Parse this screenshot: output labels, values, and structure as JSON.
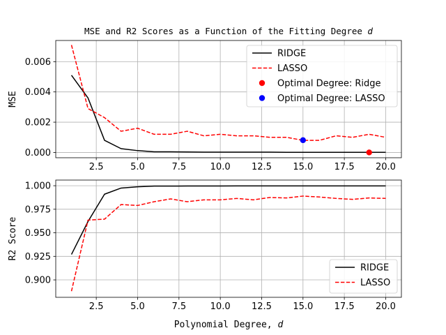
{
  "chart_data": [
    {
      "type": "line",
      "title": "MSE and R2 Scores as a Function of the Fitting Degree",
      "title_var": "d",
      "xlabel": "",
      "ylabel": "MSE",
      "xlim": [
        0.05,
        20.95
      ],
      "ylim": [
        -0.00035,
        0.0074
      ],
      "xticks": [
        2.5,
        5.0,
        7.5,
        10.0,
        12.5,
        15.0,
        17.5,
        20.0
      ],
      "xtick_labels": [
        "2.5",
        "5.0",
        "7.5",
        "10.0",
        "12.5",
        "15.0",
        "17.5",
        "20.0"
      ],
      "yticks": [
        0.0,
        0.002,
        0.004,
        0.006
      ],
      "ytick_labels": [
        "0.000",
        "0.002",
        "0.004",
        "0.006"
      ],
      "grid": true,
      "legend_position": "top-right",
      "x": [
        1,
        2,
        3,
        4,
        5,
        6,
        7,
        8,
        9,
        10,
        11,
        12,
        13,
        14,
        15,
        16,
        17,
        18,
        19,
        20
      ],
      "series": [
        {
          "name": "RIDGE",
          "color": "#000000",
          "style": "solid",
          "values": [
            0.0051,
            0.0036,
            0.0008,
            0.00025,
            0.00012,
            4e-05,
            4e-05,
            3e-05,
            2e-05,
            2e-05,
            2e-05,
            2e-05,
            2e-05,
            1e-05,
            1e-05,
            1e-05,
            1e-05,
            1e-05,
            1e-05,
            1e-05
          ]
        },
        {
          "name": "LASSO",
          "color": "#ff0000",
          "style": "dashed",
          "values": [
            0.0071,
            0.0029,
            0.0023,
            0.0014,
            0.0016,
            0.0012,
            0.0012,
            0.0014,
            0.0011,
            0.0012,
            0.0011,
            0.0011,
            0.001,
            0.001,
            0.0008,
            0.0008,
            0.0011,
            0.001,
            0.0012,
            0.001
          ]
        }
      ],
      "markers": [
        {
          "name": "Optimal Degree: Ridge",
          "color": "#ff0000",
          "x": 19,
          "y": 0.0
        },
        {
          "name": "Optimal Degree: LASSO",
          "color": "#0000ff",
          "x": 15,
          "y": 0.00081
        }
      ]
    },
    {
      "type": "line",
      "title": "",
      "xlabel": "Polynomial Degree,",
      "xlabel_var": "d",
      "ylabel": "R2 Score",
      "xlim": [
        0.05,
        20.95
      ],
      "ylim": [
        0.8815,
        1.006
      ],
      "xticks": [
        2.5,
        5.0,
        7.5,
        10.0,
        12.5,
        15.0,
        17.5,
        20.0
      ],
      "xtick_labels": [
        "2.5",
        "5.0",
        "7.5",
        "10.0",
        "12.5",
        "15.0",
        "17.5",
        "20.0"
      ],
      "yticks": [
        0.9,
        0.925,
        0.95,
        0.975,
        1.0
      ],
      "ytick_labels": [
        "0.900",
        "0.925",
        "0.950",
        "0.975",
        "1.000"
      ],
      "grid": true,
      "legend_position": "bottom-right",
      "x": [
        1,
        2,
        3,
        4,
        5,
        6,
        7,
        8,
        9,
        10,
        11,
        12,
        13,
        14,
        15,
        16,
        17,
        18,
        19,
        20
      ],
      "series": [
        {
          "name": "RIDGE",
          "color": "#000000",
          "style": "solid",
          "values": [
            0.927,
            0.962,
            0.991,
            0.9975,
            0.9989,
            0.9996,
            0.9996,
            0.9997,
            0.9997,
            0.9997,
            0.9998,
            0.9998,
            0.9998,
            0.9998,
            0.9998,
            0.9998,
            0.9998,
            0.9998,
            0.9998,
            0.9998
          ]
        },
        {
          "name": "LASSO",
          "color": "#ff0000",
          "style": "dashed",
          "values": [
            0.888,
            0.9635,
            0.9645,
            0.98,
            0.979,
            0.983,
            0.986,
            0.983,
            0.985,
            0.985,
            0.9865,
            0.985,
            0.9875,
            0.987,
            0.989,
            0.988,
            0.9865,
            0.9855,
            0.987,
            0.9865
          ]
        }
      ],
      "markers": []
    }
  ]
}
